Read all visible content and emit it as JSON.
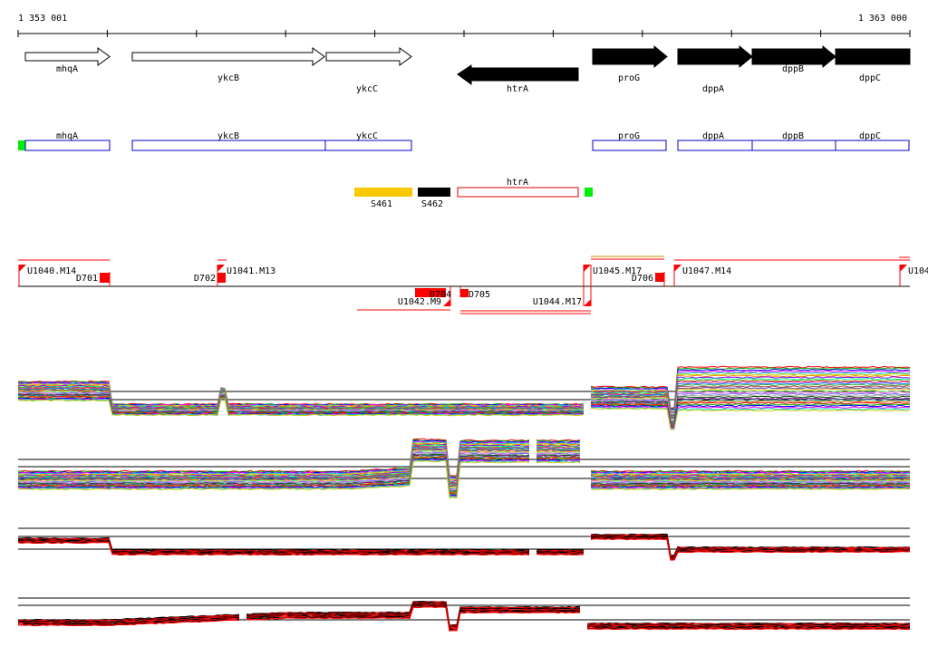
{
  "axis": {
    "start_label": "1 353 001",
    "end_label": "1 363 000"
  },
  "genes": [
    {
      "name": "mhqA",
      "strand": "+",
      "filled": false
    },
    {
      "name": "ykcB",
      "strand": "+",
      "filled": false
    },
    {
      "name": "ykcC",
      "strand": "+",
      "filled": false
    },
    {
      "name": "htrA",
      "strand": "-",
      "filled": true
    },
    {
      "name": "proG",
      "strand": "+",
      "filled": true
    },
    {
      "name": "dppA",
      "strand": "+",
      "filled": true
    },
    {
      "name": "dppB",
      "strand": "+",
      "filled": true
    },
    {
      "name": "dppC",
      "strand": "+",
      "filled": true
    }
  ],
  "cds_track": [
    {
      "name": "mhqA"
    },
    {
      "name": "ykcB"
    },
    {
      "name": "ykcC"
    },
    {
      "name": "proG"
    },
    {
      "name": "dppA"
    },
    {
      "name": "dppB"
    },
    {
      "name": "dppC"
    }
  ],
  "segments": [
    {
      "name": "S461",
      "color": "#f8c800"
    },
    {
      "name": "S462",
      "color": "#000000"
    },
    {
      "name": "htrA",
      "color": "#e00000"
    }
  ],
  "transcripts": [
    {
      "label": "U1040.M14"
    },
    {
      "label": "D701"
    },
    {
      "label": "D702"
    },
    {
      "label": "U1041.M13"
    },
    {
      "label": "U1042.M9"
    },
    {
      "label": "D704"
    },
    {
      "label": "D705"
    },
    {
      "label": "U1044.M17"
    },
    {
      "label": "U1045.M17"
    },
    {
      "label": "D706"
    },
    {
      "label": "U1047.M14"
    },
    {
      "label": "U104"
    }
  ],
  "colors": {
    "red": "#ff0000",
    "blue": "#0000cc",
    "green": "#00ee00",
    "yellow": "#f8c800"
  },
  "expression_panels": [
    {
      "name": "panel-1",
      "style": "multicolor"
    },
    {
      "name": "panel-2",
      "style": "multicolor"
    },
    {
      "name": "panel-3",
      "style": "red-black"
    },
    {
      "name": "panel-4",
      "style": "red-black"
    }
  ]
}
